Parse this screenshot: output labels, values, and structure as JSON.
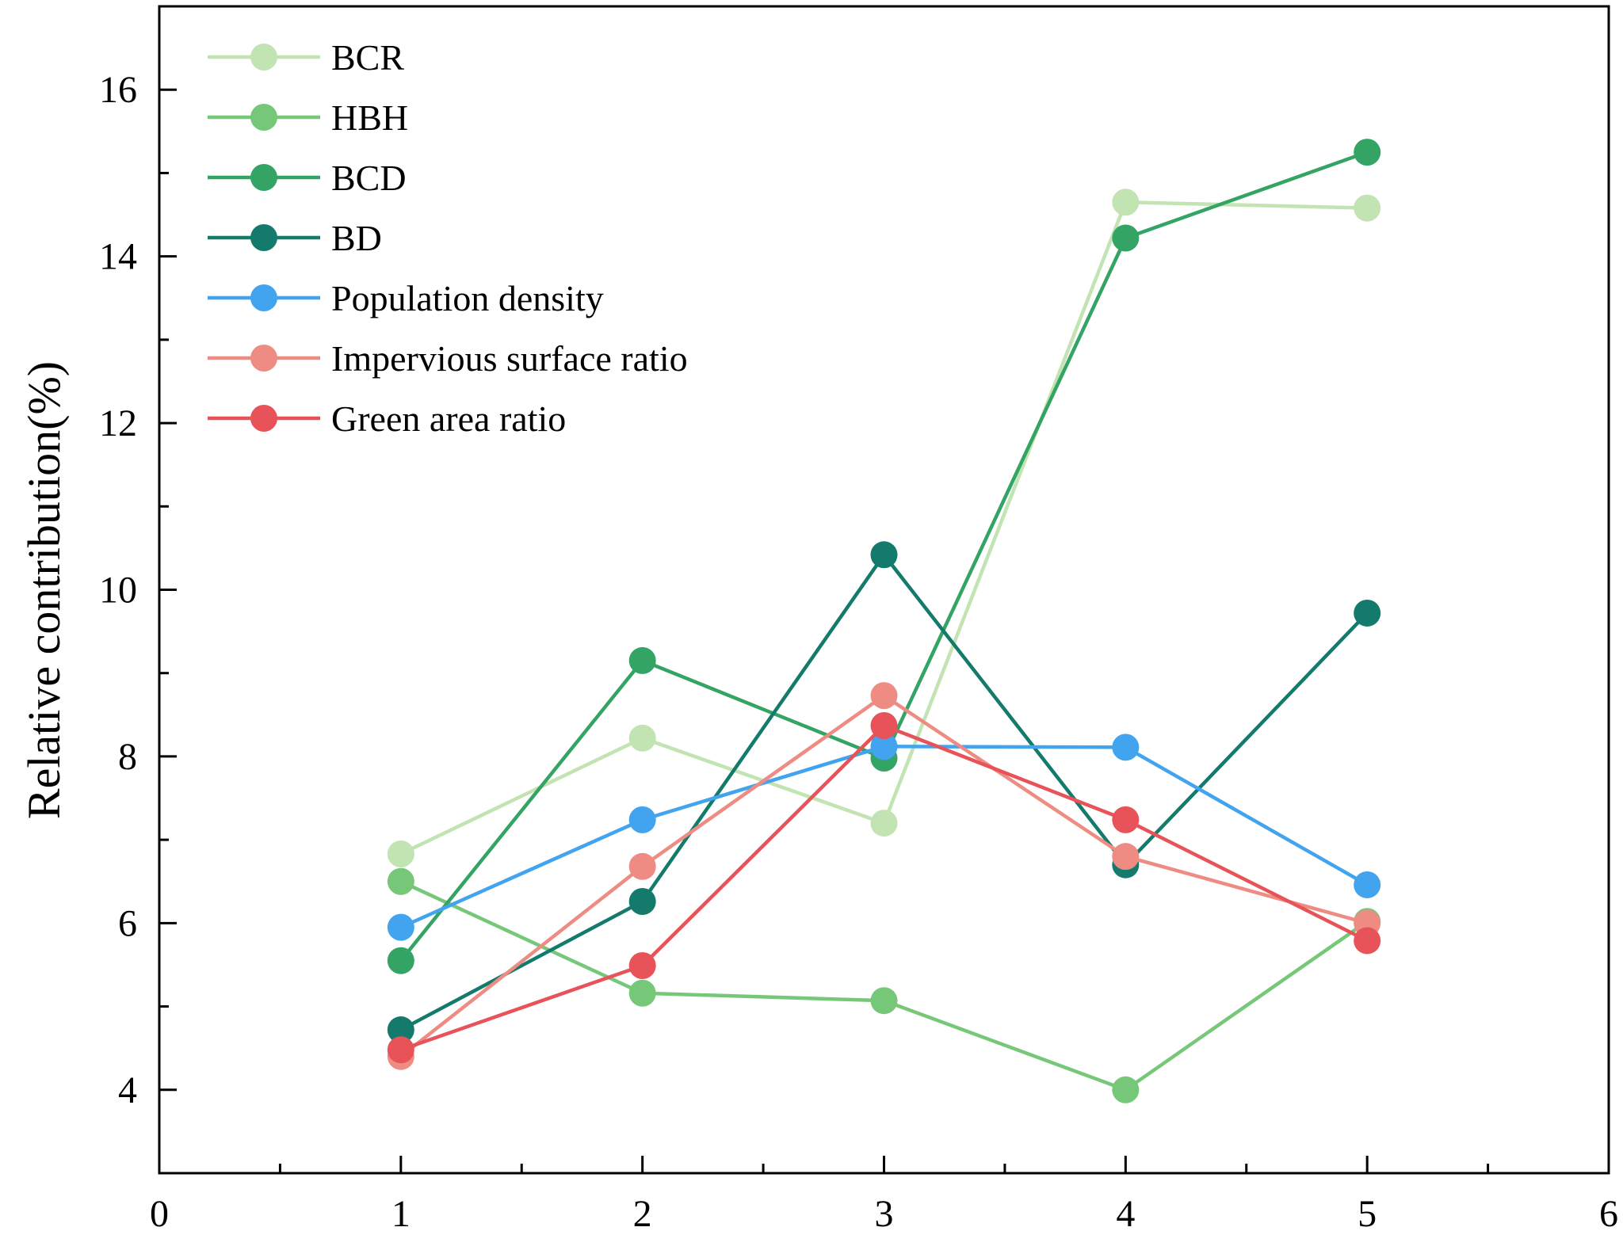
{
  "chart_data": {
    "type": "line",
    "title": "",
    "xlabel": "",
    "ylabel": "Relative contribution(%)",
    "xlim": [
      0,
      6
    ],
    "ylim": [
      3,
      17
    ],
    "xticks": [
      0,
      1,
      2,
      3,
      4,
      5,
      6
    ],
    "yticks": [
      4,
      6,
      8,
      10,
      12,
      14,
      16
    ],
    "x": [
      1,
      2,
      3,
      4,
      5
    ],
    "grid": false,
    "legend_position": "top-left",
    "series": [
      {
        "name": "BCR",
        "color": "#c2e3b2",
        "values": [
          6.83,
          8.22,
          7.2,
          14.65,
          14.58
        ]
      },
      {
        "name": "HBH",
        "color": "#77c779",
        "values": [
          6.5,
          5.16,
          5.07,
          4.0,
          6.02
        ]
      },
      {
        "name": "BCD",
        "color": "#34a465",
        "values": [
          5.55,
          9.15,
          7.98,
          14.22,
          15.25
        ]
      },
      {
        "name": "BD",
        "color": "#137a6c",
        "values": [
          4.72,
          6.26,
          10.42,
          6.7,
          9.72
        ]
      },
      {
        "name": "Population density",
        "color": "#42a4ee",
        "values": [
          5.95,
          7.24,
          8.12,
          8.11,
          6.46
        ]
      },
      {
        "name": "Impervious surface ratio",
        "color": "#ee8c84",
        "values": [
          4.4,
          6.68,
          8.73,
          6.8,
          6.0
        ]
      },
      {
        "name": "Green area ratio",
        "color": "#e85359",
        "values": [
          4.48,
          5.49,
          8.37,
          7.24,
          5.79
        ]
      }
    ]
  }
}
